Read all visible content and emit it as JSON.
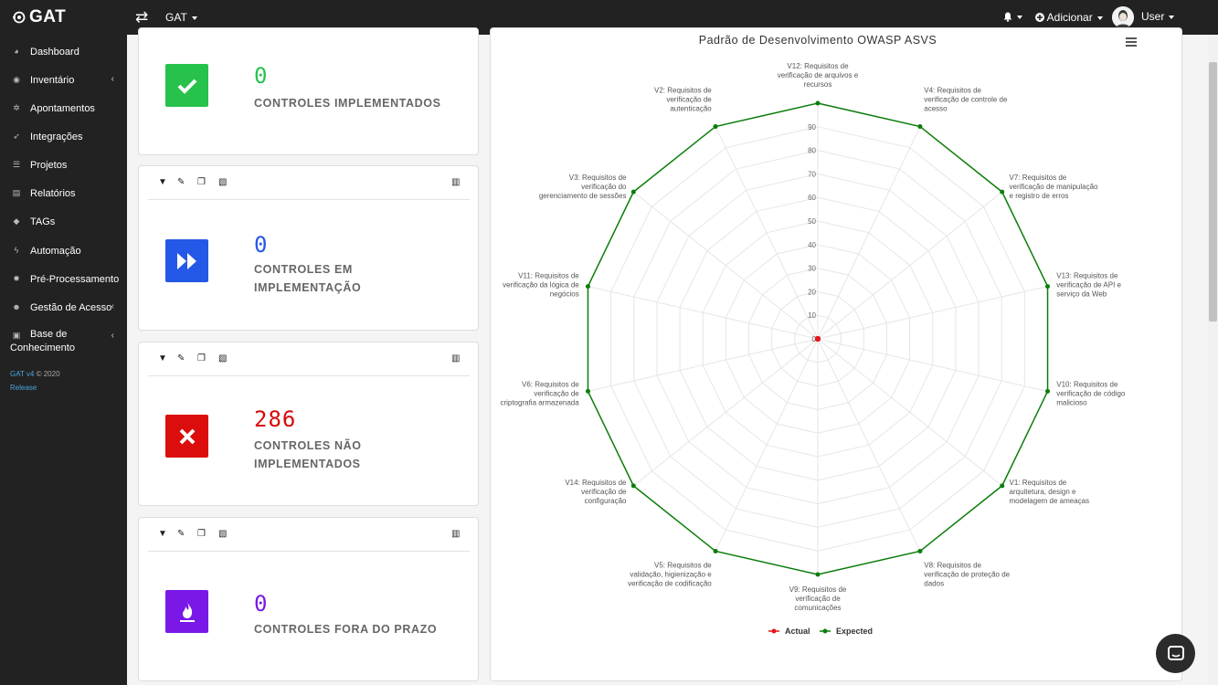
{
  "topbar": {
    "app_name": "GAT",
    "project_label": "GAT",
    "add_label": "Adicionar",
    "user_label": "User"
  },
  "sidebar": {
    "items": [
      {
        "label": "Dashboard",
        "icon": "palette-icon",
        "has_arrow": false
      },
      {
        "label": "Inventário",
        "icon": "disc-icon",
        "has_arrow": true
      },
      {
        "label": "Apontamentos",
        "icon": "bug-icon",
        "has_arrow": false
      },
      {
        "label": "Integrações",
        "icon": "plug-icon",
        "has_arrow": false
      },
      {
        "label": "Projetos",
        "icon": "list-icon",
        "has_arrow": false
      },
      {
        "label": "Relatórios",
        "icon": "file-icon",
        "has_arrow": false
      },
      {
        "label": "TAGs",
        "icon": "tag-icon",
        "has_arrow": false
      },
      {
        "label": "Automação",
        "icon": "bolt-icon",
        "has_arrow": false
      },
      {
        "label": "Pré-Processamento",
        "icon": "gear-icon",
        "has_arrow": false
      },
      {
        "label": "Gestão de Acesso",
        "icon": "users-icon",
        "has_arrow": true
      }
    ],
    "kb_line1": "Base de",
    "kb_line2": "Conhecimento",
    "version_prefix": "GAT v4 ",
    "version_suffix": "© 2020",
    "release": "Release"
  },
  "cards": [
    {
      "value": "0",
      "label_line1": "CONTROLES IMPLEMENTADOS",
      "label_line2": "",
      "color": "#1db954",
      "icon": "check-icon"
    },
    {
      "value": "0",
      "label_line1": "CONTROLES EM",
      "label_line2": "IMPLEMENTAÇÃO",
      "color": "#2458e6",
      "icon": "fast-forward-icon"
    },
    {
      "value": "286",
      "label_line1": "CONTROLES NÃO",
      "label_line2": "IMPLEMENTADOS",
      "color": "#d60a0a",
      "icon": "x-icon"
    },
    {
      "value": "0",
      "label_line1": "CONTROLES FORA DO PRAZO",
      "label_line2": "",
      "color": "#7a18e8",
      "icon": "fire-icon"
    }
  ],
  "chart_data": {
    "type": "radar",
    "title": "Padrão de Desenvolvimento OWASP ASVS",
    "categories": [
      "V12: Requisitos de verificação de arquivos e recursos",
      "V4: Requisitos de verificação de controle de acesso",
      "V7: Requisitos de verificação de manipulação e registro de erros",
      "V13: Requisitos de verificação de API e serviço da Web",
      "V10: Requisitos de verificação de código malicioso",
      "V1: Requisitos de arquitetura, design e modelagem de ameaças",
      "V8: Requisitos de verificação de proteção de dados",
      "V9: Requisitos de verificação de comunicações",
      "V5: Requisitos de validação, higienização e verificação de codificação",
      "V14: Requisitos de verificação de configuração",
      "V6: Requisitos de verificação de criptografia armazenada",
      "V11: Requisitos de verificação da lógica de negócios",
      "V3: Requisitos de verificação do gerenciamento de sessões",
      "V2: Requisitos de verificação de autenticação"
    ],
    "series": [
      {
        "name": "Actual",
        "color": "#e8141a",
        "values": [
          0,
          0,
          0,
          0,
          0,
          0,
          0,
          0,
          0,
          0,
          0,
          0,
          0,
          0
        ]
      },
      {
        "name": "Expected",
        "color": "#0a7d0a",
        "values": [
          100,
          100,
          100,
          100,
          100,
          100,
          100,
          100,
          100,
          100,
          100,
          100,
          100,
          100
        ]
      }
    ],
    "radial_ticks": [
      0,
      10,
      20,
      30,
      40,
      50,
      60,
      70,
      80,
      90
    ],
    "range": [
      0,
      100
    ],
    "legend_position": "bottom"
  }
}
